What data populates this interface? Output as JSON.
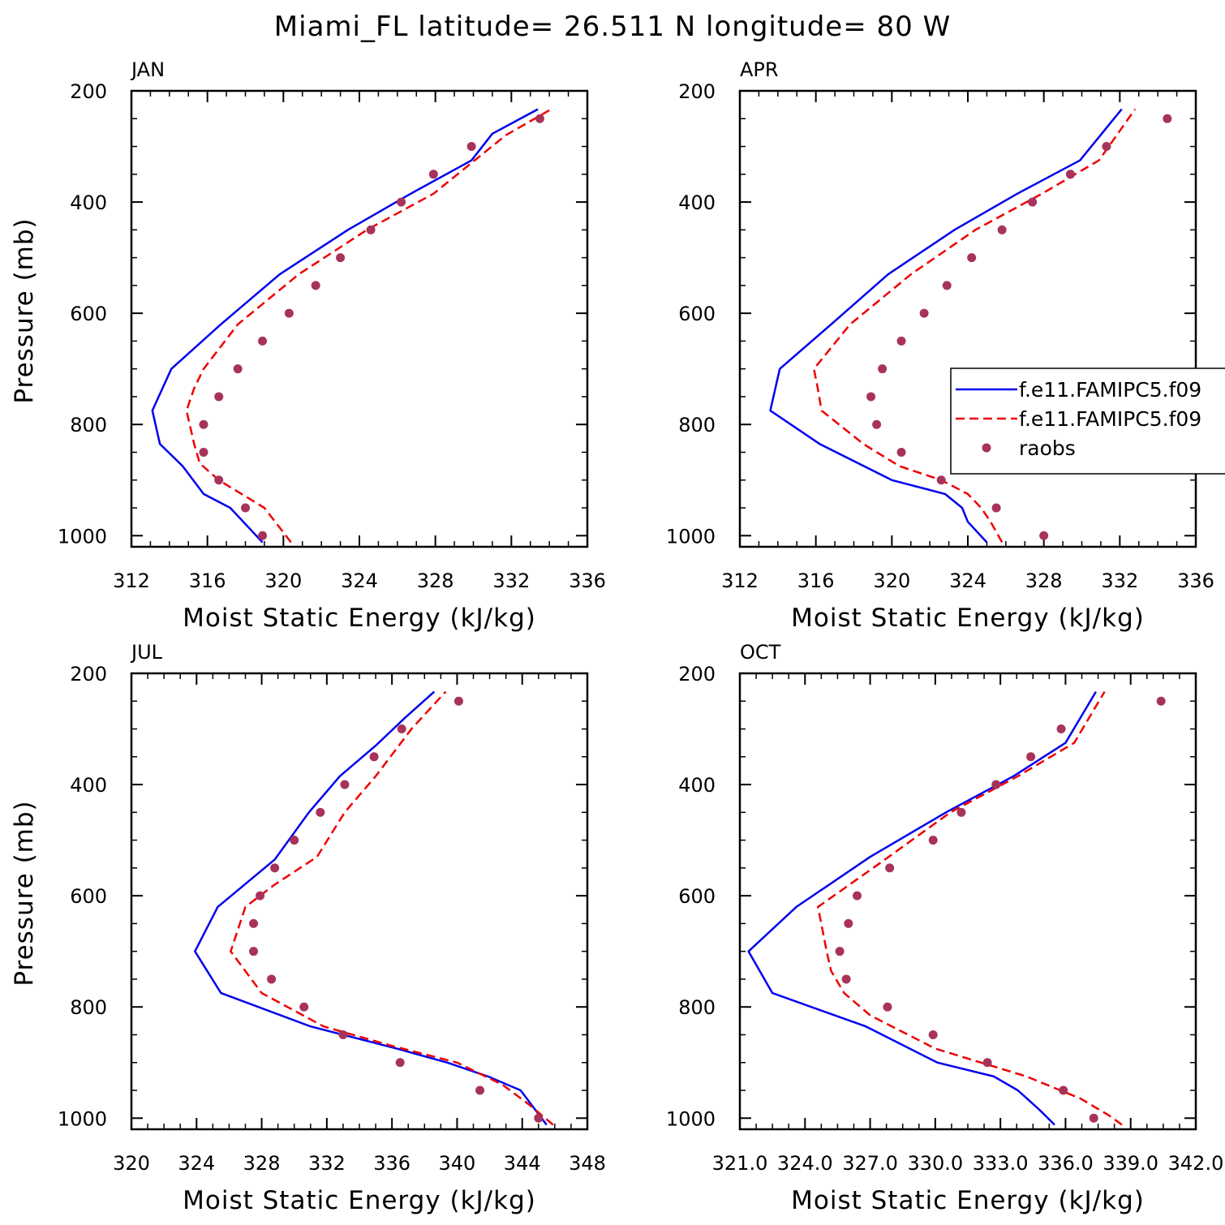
{
  "title": "Miami_FL  latitude= 26.511 N longitude= 80 W",
  "colors": {
    "series1": "#0000ee",
    "series2": "#ee0000",
    "raobs": "#a8335a",
    "axis": "#000000"
  },
  "legend": {
    "entries": [
      "f.e11.FAMIPC5.f09",
      "f.e11.FAMIPC5.f09",
      "raobs"
    ],
    "panel": "APR",
    "placement": "right, clipped at figure edge"
  },
  "chart_data": [
    {
      "type": "line",
      "panel": "JAN",
      "xlabel": "Moist Static Energy (kJ/kg)",
      "ylabel": "Pressure (mb)",
      "xlim": [
        312,
        336
      ],
      "ylim": [
        1020,
        200
      ],
      "xticks": [
        "312",
        "316",
        "320",
        "324",
        "328",
        "332",
        "336"
      ],
      "yticks": [
        "200",
        "400",
        "600",
        "800",
        "1000"
      ],
      "series": [
        {
          "name": "f.e11.FAMIPC5.f09",
          "style": "solid",
          "x": [
            318.9,
            317.2,
            315.8,
            314.7,
            313.5,
            313.1,
            314.1,
            316.7,
            319.8,
            323.4,
            326.7,
            329.9,
            331.0,
            333.4
          ],
          "y": [
            1012,
            950,
            925,
            875,
            835,
            775,
            700,
            620,
            530,
            450,
            385,
            325,
            277,
            233
          ]
        },
        {
          "name": "f.e11.FAMIPC5.f09",
          "style": "dashed",
          "x": [
            320.4,
            319.0,
            317.8,
            316.6,
            315.6,
            315.3,
            314.9,
            315.3,
            315.8,
            317.6,
            320.8,
            324.4,
            327.9,
            331.7,
            334.1
          ],
          "y": [
            1012,
            950,
            925,
            900,
            870,
            835,
            775,
            735,
            700,
            620,
            530,
            450,
            385,
            280,
            233
          ]
        },
        {
          "name": "raobs",
          "style": "markers",
          "x": [
            318.9,
            318.0,
            316.6,
            315.8,
            315.8,
            316.6,
            317.6,
            318.9,
            320.3,
            321.7,
            323.0,
            324.6,
            326.2,
            327.9,
            329.9,
            333.5
          ],
          "y": [
            1000,
            950,
            900,
            850,
            800,
            750,
            700,
            650,
            600,
            550,
            500,
            450,
            400,
            350,
            300,
            250
          ]
        }
      ]
    },
    {
      "type": "line",
      "panel": "APR",
      "xlabel": "Moist Static Energy (kJ/kg)",
      "ylabel": "",
      "xlim": [
        312,
        336
      ],
      "ylim": [
        1020,
        200
      ],
      "xticks": [
        "312",
        "316",
        "320",
        "324",
        "328",
        "332",
        "336"
      ],
      "yticks": [
        "200",
        "400",
        "600",
        "800",
        "1000"
      ],
      "series": [
        {
          "name": "f.e11.FAMIPC5.f09",
          "style": "solid",
          "x": [
            325.0,
            324.0,
            323.7,
            322.8,
            320.0,
            316.2,
            313.6,
            314.1,
            316.8,
            319.8,
            323.3,
            326.6,
            329.9,
            332.1
          ],
          "y": [
            1012,
            975,
            950,
            925,
            900,
            835,
            775,
            700,
            620,
            530,
            450,
            385,
            325,
            233
          ]
        },
        {
          "name": "f.e11.FAMIPC5.f09",
          "style": "dashed",
          "x": [
            325.8,
            325.2,
            324.7,
            324.0,
            322.6,
            320.4,
            318.5,
            316.3,
            316.1,
            315.9,
            317.8,
            321.0,
            324.4,
            327.9,
            330.9,
            332.8
          ],
          "y": [
            1012,
            975,
            950,
            925,
            900,
            875,
            835,
            775,
            735,
            700,
            620,
            530,
            450,
            385,
            325,
            233
          ]
        },
        {
          "name": "raobs",
          "style": "markers",
          "x": [
            328.0,
            325.5,
            322.6,
            320.5,
            319.2,
            318.9,
            319.5,
            320.5,
            321.7,
            322.9,
            324.2,
            325.8,
            327.4,
            329.4,
            331.3,
            334.5
          ],
          "y": [
            1000,
            950,
            900,
            850,
            800,
            750,
            700,
            650,
            600,
            550,
            500,
            450,
            400,
            350,
            300,
            250
          ]
        }
      ]
    },
    {
      "type": "line",
      "panel": "JUL",
      "xlabel": "Moist Static Energy (kJ/kg)",
      "ylabel": "Pressure (mb)",
      "xlim": [
        320,
        348
      ],
      "ylim": [
        1020,
        200
      ],
      "xticks": [
        "320",
        "324",
        "328",
        "332",
        "336",
        "340",
        "344",
        "348"
      ],
      "yticks": [
        "200",
        "400",
        "600",
        "800",
        "1000"
      ],
      "series": [
        {
          "name": "f.e11.FAMIPC5.f09",
          "style": "solid",
          "x": [
            345.5,
            343.9,
            341.9,
            339.4,
            336.3,
            331.0,
            325.5,
            323.9,
            325.3,
            328.8,
            330.9,
            332.8,
            335.0,
            336.8,
            338.6
          ],
          "y": [
            1012,
            950,
            925,
            900,
            875,
            835,
            775,
            700,
            620,
            535,
            450,
            385,
            330,
            280,
            233
          ]
        },
        {
          "name": "f.e11.FAMIPC5.f09",
          "style": "dashed",
          "x": [
            345.9,
            344.4,
            342.8,
            340.0,
            336.0,
            331.8,
            328.0,
            326.1,
            327.0,
            328.8,
            331.4,
            333.1,
            335.0,
            337.2,
            339.3
          ],
          "y": [
            1012,
            975,
            940,
            900,
            870,
            835,
            775,
            700,
            620,
            580,
            530,
            450,
            385,
            300,
            233
          ]
        },
        {
          "name": "raobs",
          "style": "markers",
          "x": [
            345.0,
            341.4,
            336.5,
            333.0,
            330.6,
            328.6,
            327.5,
            327.5,
            327.9,
            328.8,
            330.0,
            331.6,
            333.1,
            334.9,
            336.6,
            340.1
          ],
          "y": [
            1000,
            950,
            900,
            850,
            800,
            750,
            700,
            650,
            600,
            550,
            500,
            450,
            400,
            350,
            300,
            250
          ]
        }
      ]
    },
    {
      "type": "line",
      "panel": "OCT",
      "xlabel": "Moist Static Energy (kJ/kg)",
      "ylabel": "",
      "xlim": [
        321.0,
        342.0
      ],
      "ylim": [
        1020,
        200
      ],
      "xticks": [
        "321.0",
        "324.0",
        "327.0",
        "330.0",
        "333.0",
        "336.0",
        "339.0",
        "342.0"
      ],
      "yticks": [
        "200",
        "400",
        "600",
        "800",
        "1000"
      ],
      "series": [
        {
          "name": "f.e11.FAMIPC5.f09",
          "style": "solid",
          "x": [
            335.5,
            334.8,
            333.8,
            332.7,
            330.1,
            326.8,
            322.5,
            321.4,
            323.6,
            327.0,
            330.5,
            333.6,
            336.0,
            337.4
          ],
          "y": [
            1012,
            985,
            950,
            925,
            900,
            835,
            775,
            700,
            620,
            530,
            450,
            385,
            325,
            233
          ]
        },
        {
          "name": "f.e11.FAMIPC5.f09",
          "style": "dashed",
          "x": [
            338.6,
            338.0,
            336.7,
            334.2,
            330.0,
            327.0,
            325.8,
            325.2,
            325.0,
            324.6,
            327.5,
            330.7,
            333.8,
            336.4,
            337.8
          ],
          "y": [
            1012,
            995,
            965,
            925,
            875,
            815,
            775,
            735,
            700,
            620,
            540,
            450,
            385,
            325,
            233
          ]
        },
        {
          "name": "raobs",
          "style": "markers",
          "x": [
            337.3,
            335.9,
            332.4,
            329.9,
            327.8,
            325.9,
            325.6,
            326.0,
            326.4,
            327.9,
            329.9,
            331.2,
            332.8,
            334.4,
            335.8,
            340.4
          ],
          "y": [
            1000,
            950,
            900,
            850,
            800,
            750,
            700,
            650,
            600,
            550,
            500,
            450,
            400,
            350,
            300,
            250
          ]
        }
      ]
    }
  ]
}
